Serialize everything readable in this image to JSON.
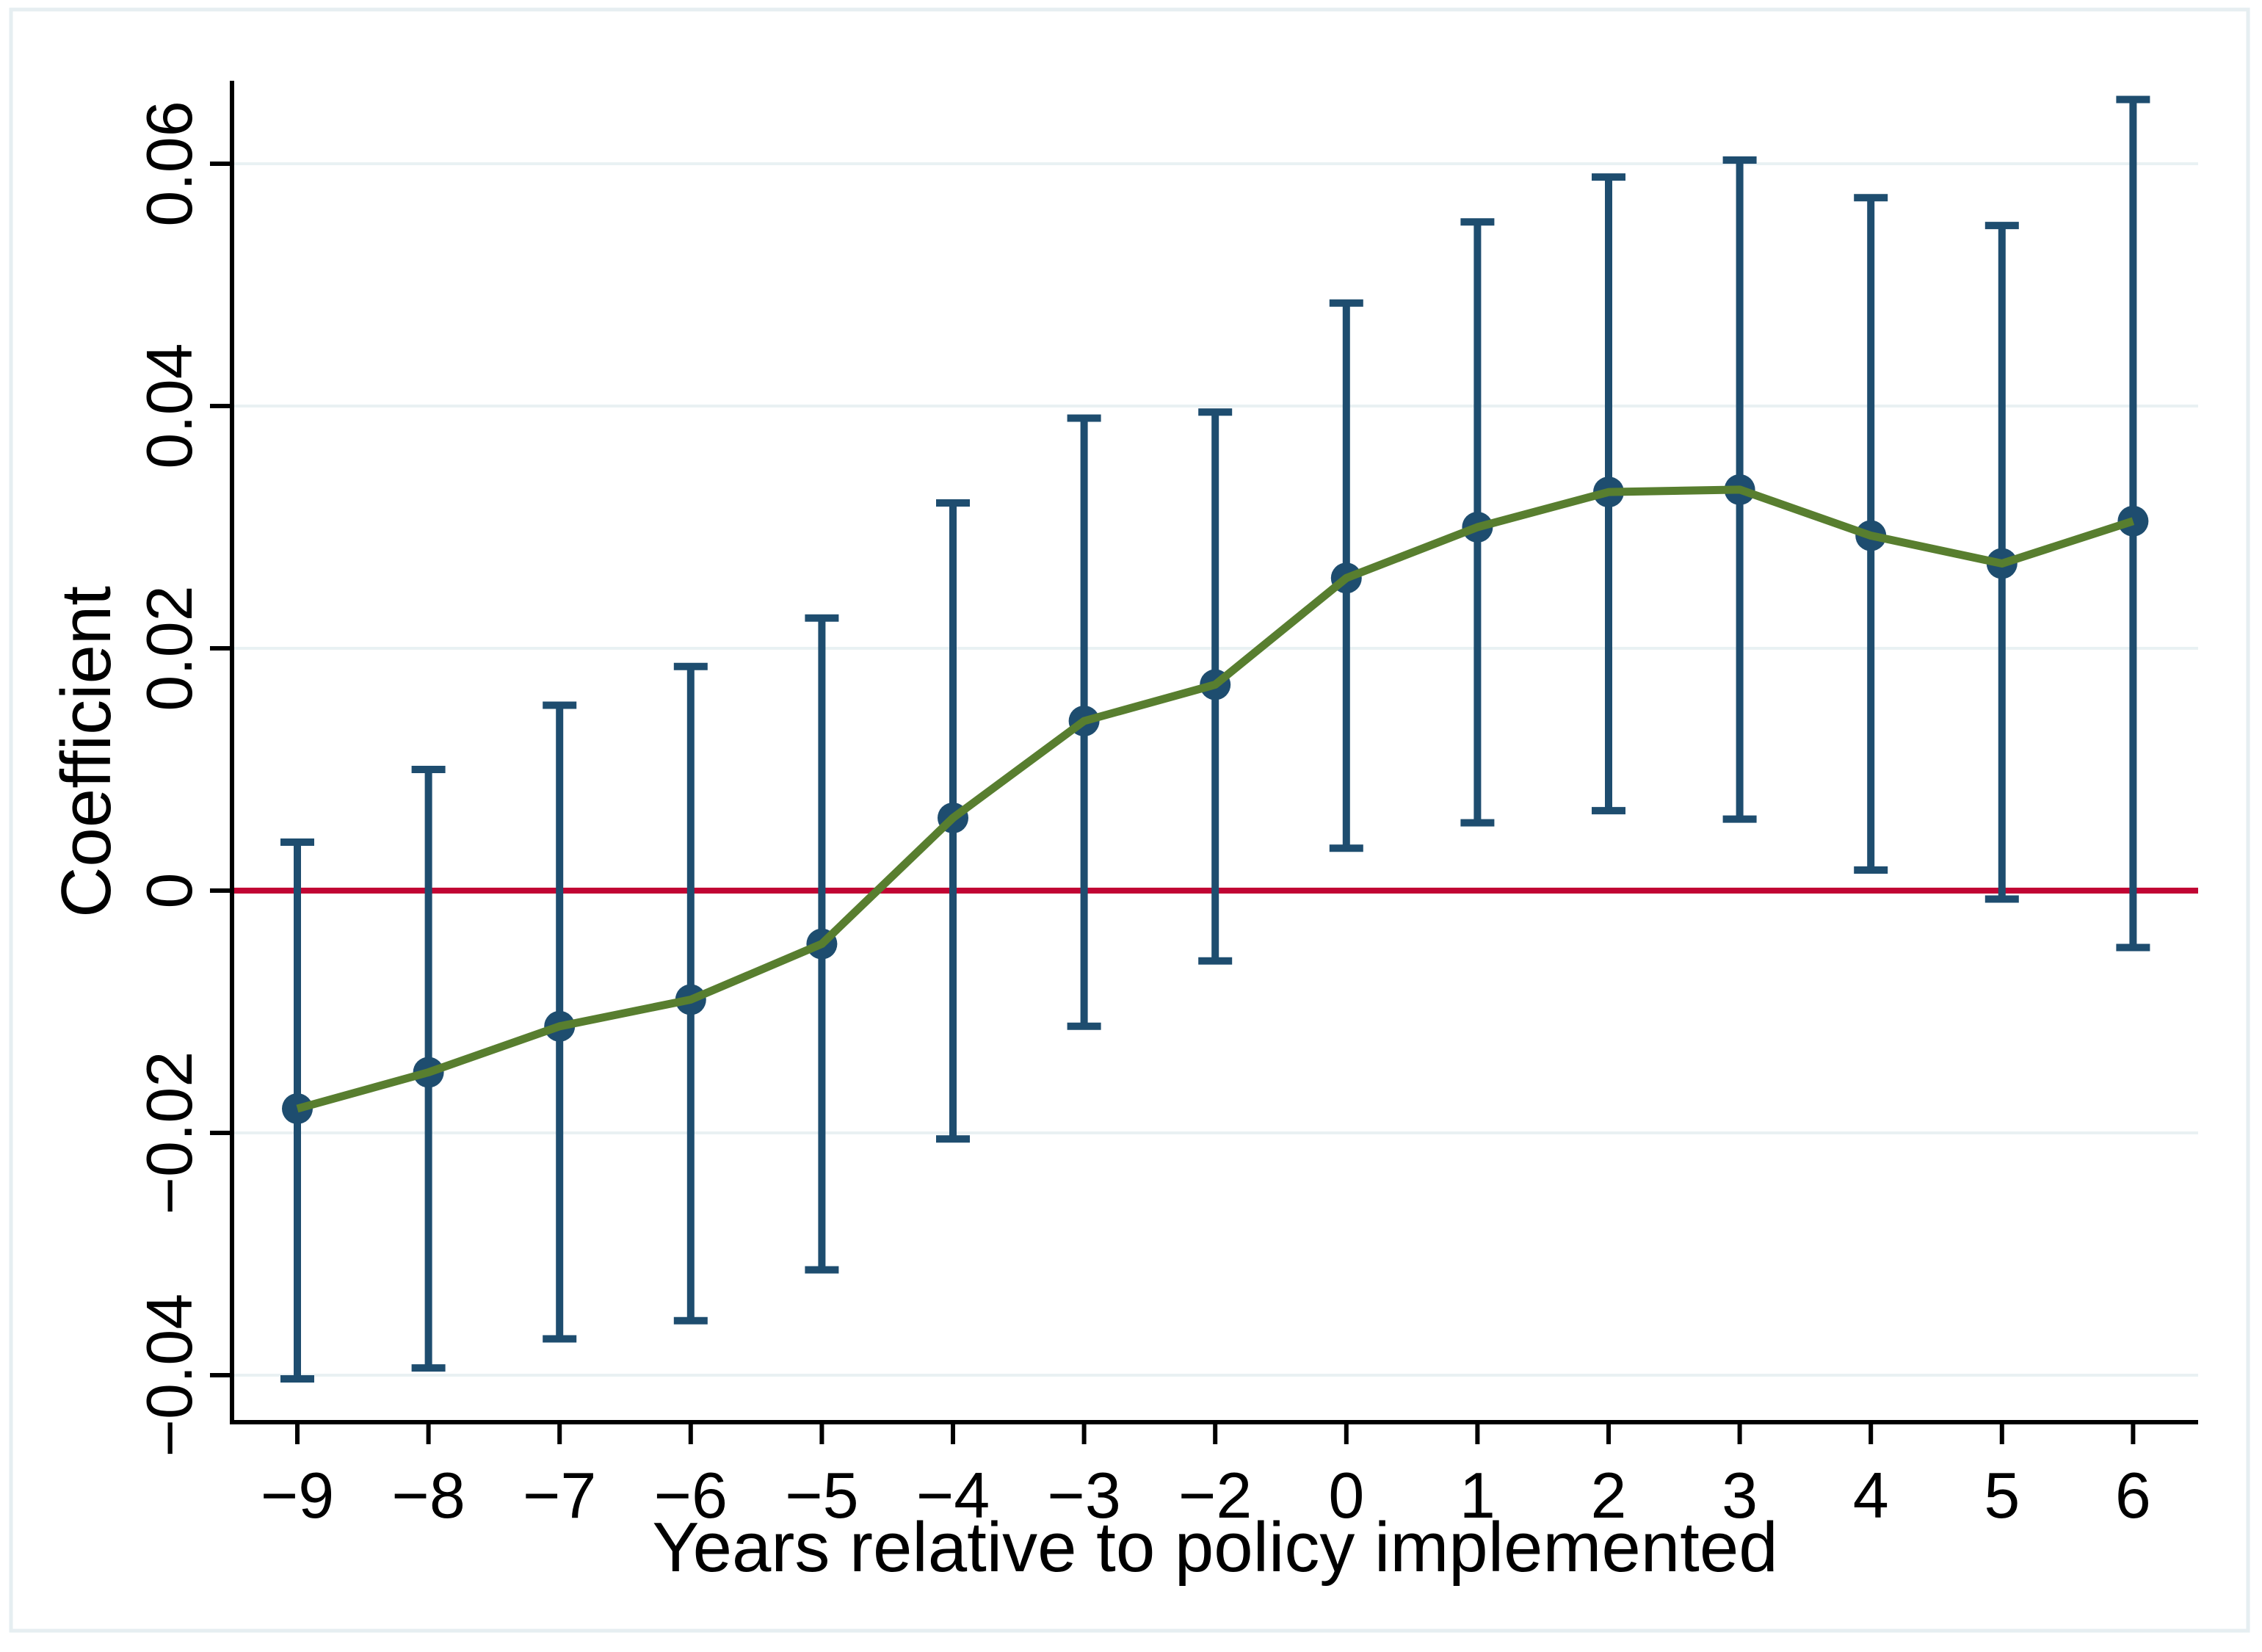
{
  "figure": {
    "background": "#ffffff",
    "border_color": "#e6eef1"
  },
  "chart_data": {
    "type": "line",
    "subtype": "event-study coefficient plot with 95% confidence intervals",
    "title": "",
    "xlabel": "Years relative to policy implemented",
    "ylabel": "Coefficient",
    "categories": [
      "−9",
      "−8",
      "−7",
      "−6",
      "−5",
      "−4",
      "−3",
      "−2",
      "0",
      "1",
      "2",
      "3",
      "4",
      "5",
      "6"
    ],
    "x_numeric": [
      -9,
      -8,
      -7,
      -6,
      -5,
      -4,
      -3,
      -2,
      0,
      1,
      2,
      3,
      4,
      5,
      6
    ],
    "note_omitted_category": "-1",
    "series": [
      {
        "name": "coefficient",
        "values": [
          -0.018,
          -0.015,
          -0.0112,
          -0.009,
          -0.0044,
          0.006,
          0.014,
          0.017,
          0.0258,
          0.03,
          0.0329,
          0.0331,
          0.0293,
          0.027,
          0.0305
        ]
      },
      {
        "name": "ci_lower",
        "values": [
          -0.0403,
          -0.0394,
          -0.037,
          -0.0355,
          -0.0313,
          -0.0205,
          -0.0112,
          -0.0058,
          0.0035,
          0.0056,
          0.0066,
          0.0059,
          0.0017,
          -0.0007,
          -0.0047
        ]
      },
      {
        "name": "ci_upper",
        "values": [
          0.004,
          0.01,
          0.0153,
          0.0185,
          0.0225,
          0.032,
          0.039,
          0.0395,
          0.0485,
          0.0552,
          0.0589,
          0.0603,
          0.0572,
          0.0549,
          0.0653
        ]
      }
    ],
    "y_ticks": [
      -0.04,
      -0.02,
      0,
      0.02,
      0.04,
      0.06
    ],
    "y_tick_labels": [
      "−0.04",
      "−0.02",
      "0",
      "0.02",
      "0.04",
      "0.06"
    ],
    "ylim": [
      -0.0439,
      0.0668
    ],
    "grid": true,
    "zero_reference_line": 0,
    "legend_position": "none",
    "colors": {
      "marker": "#1e4d6f",
      "ci_bar": "#1e4d6f",
      "line": "#587e2f",
      "zero_line": "#c10534",
      "grid": "#e9f1f3",
      "axis": "#000000",
      "text": "#000000"
    }
  }
}
